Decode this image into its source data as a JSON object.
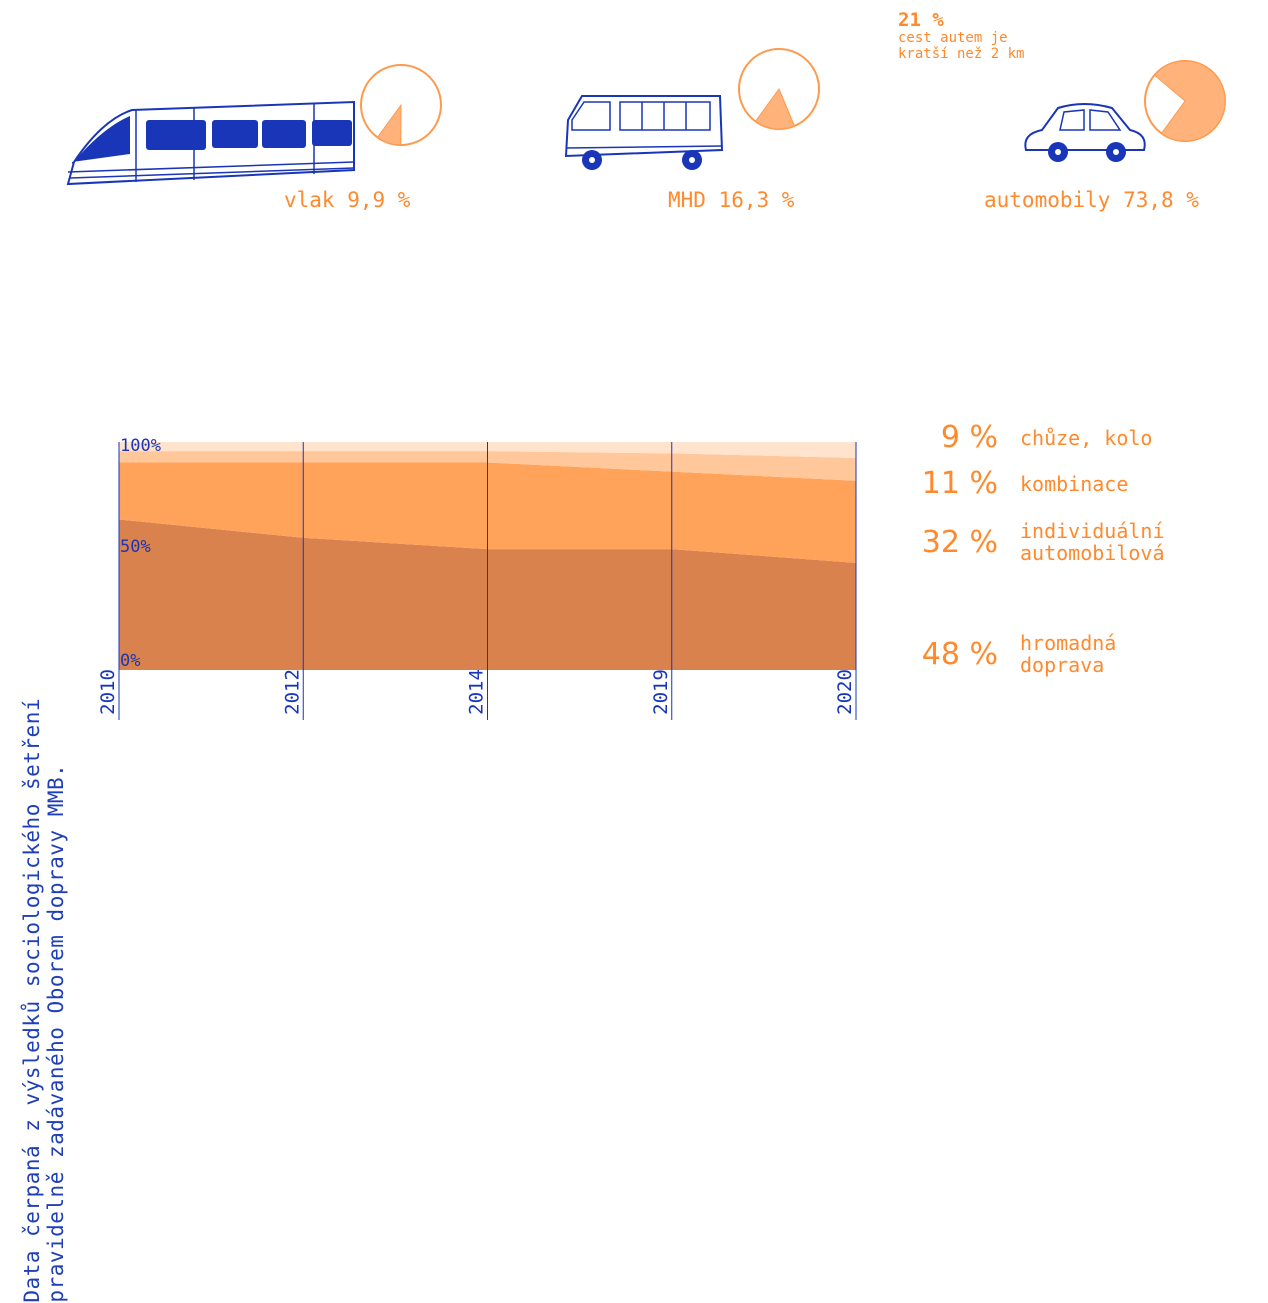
{
  "source_note": {
    "line1": "Data čerpaná z výsledků sociologického šetření",
    "line2": "pravidelně zadávaného Oborem dopravy MMB."
  },
  "vehicles": [
    {
      "name": "train",
      "label": "vlak 9,9 %",
      "share": 9.9
    },
    {
      "name": "bus",
      "label": "MHD 16,3 %",
      "share": 16.3
    },
    {
      "name": "car",
      "label": "automobily 73,8 %",
      "share": 73.8
    }
  ],
  "car_note": {
    "value": "21 %",
    "line1": "cest autem je",
    "line2": "kratší než 2 km"
  },
  "colors": {
    "accent": "#ff8a2e",
    "pie_fill": "#ffb27a",
    "pie_stroke": "#ff9a4d",
    "ink": "#1a36b8",
    "layer_hromadna": "#d9824e",
    "layer_individualni": "#ffa25a",
    "layer_kombinace": "#ffc79a",
    "layer_chuze": "#ffe3cc"
  },
  "chart_data": {
    "type": "area",
    "stacked": true,
    "x": [
      "2010",
      "2012",
      "2014",
      "2019",
      "2020"
    ],
    "y_ticks": [
      "0%",
      "50%",
      "100%"
    ],
    "ylim": [
      0,
      100
    ],
    "series": [
      {
        "name": "hromadná doprava",
        "values": [
          66,
          58,
          53,
          53,
          47
        ]
      },
      {
        "name": "individuální automobilová",
        "values": [
          25,
          33,
          38,
          34,
          36
        ]
      },
      {
        "name": "kombinace",
        "values": [
          5,
          5,
          5,
          8,
          10
        ]
      },
      {
        "name": "chůze, kolo",
        "values": [
          4,
          4,
          4,
          5,
          7
        ]
      }
    ],
    "legend": [
      {
        "value": "9 %",
        "label": "chůze, kolo"
      },
      {
        "value": "11 %",
        "label": "kombinace"
      },
      {
        "value": "32 %",
        "label": "individuální\nautomobilová"
      },
      {
        "value": "48 %",
        "label": "hromadná\ndoprava"
      }
    ]
  }
}
